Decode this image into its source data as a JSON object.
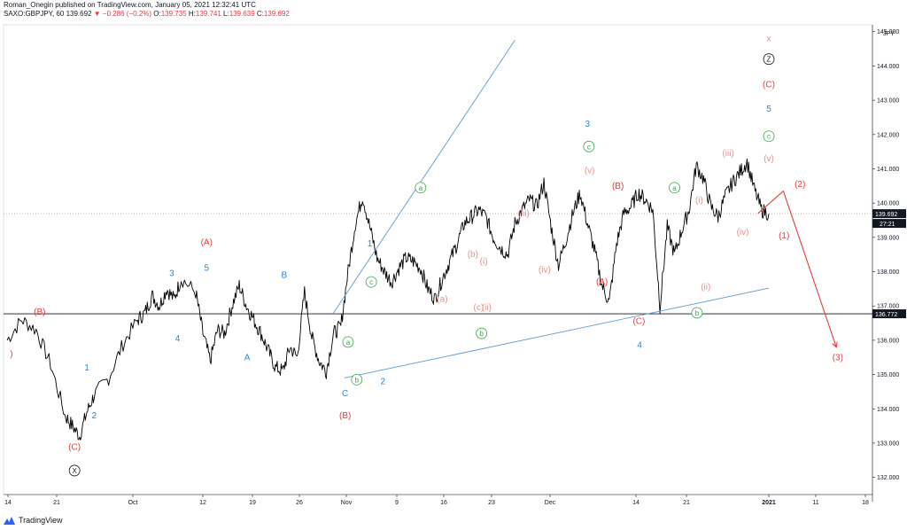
{
  "header": {
    "line1": "Roman_Onegin published on TradingView.com, January 05, 2021 12:32:41 UTC",
    "symbol": "SAXO:GBPJPY, 60",
    "last": "139.692",
    "change": "−0.286 (−0.2%)",
    "o_label": "O:",
    "o": "139.735",
    "h_label": "H:",
    "h": "139.741",
    "l_label": "L:",
    "l": "139.639",
    "c_label": "C:",
    "c": "139.692"
  },
  "watermark": "TradingView",
  "colors": {
    "candle": "#000000",
    "red": "#e83b3b",
    "blue": "#2f86d6",
    "green": "#3aa64a",
    "pink": "#e8918a",
    "trendline": "#5b9bd5",
    "hline": "#131722"
  },
  "chart_data": {
    "type": "line",
    "title": "",
    "currency_label": "JPY",
    "ylim": [
      131.5,
      145.2
    ],
    "y_ticks": [
      "145.000",
      "144.000",
      "143.000",
      "142.000",
      "141.000",
      "140.000",
      "139.000",
      "138.000",
      "137.000",
      "136.000",
      "135.000",
      "134.000",
      "133.000",
      "132.000"
    ],
    "x_ticks": [
      "14",
      "21",
      "Oct",
      "12",
      "19",
      "26",
      "Nov",
      "9",
      "16",
      "23",
      "Dec",
      "14",
      "21",
      "2021",
      "11",
      "18"
    ],
    "last_price_label": "139.692",
    "countdown_label": "27:21",
    "hline_label": "136.772",
    "hline_value": 136.772,
    "path": [
      [
        0,
        136.0
      ],
      [
        2,
        136.6
      ],
      [
        4,
        136.3
      ],
      [
        6,
        135.3
      ],
      [
        8,
        133.8
      ],
      [
        9,
        133.5
      ],
      [
        10,
        133.2
      ],
      [
        11,
        133.9
      ],
      [
        12,
        134.4
      ],
      [
        14,
        134.9
      ],
      [
        16,
        135.9
      ],
      [
        18,
        136.6
      ],
      [
        19,
        136.8
      ],
      [
        20,
        137.3
      ],
      [
        21,
        137.0
      ],
      [
        22,
        137.5
      ],
      [
        23,
        137.2
      ],
      [
        24,
        137.8
      ],
      [
        26,
        137.4
      ],
      [
        27,
        136.2
      ],
      [
        28,
        135.4
      ],
      [
        29,
        136.3
      ],
      [
        30,
        136.2
      ],
      [
        31,
        137.0
      ],
      [
        32,
        137.6
      ],
      [
        33,
        137.0
      ],
      [
        34,
        136.6
      ],
      [
        35,
        136.2
      ],
      [
        36,
        135.7
      ],
      [
        37,
        135.2
      ],
      [
        38,
        135.1
      ],
      [
        39,
        135.8
      ],
      [
        40,
        135.5
      ],
      [
        41,
        137.4
      ],
      [
        42,
        136.1
      ],
      [
        43,
        135.4
      ],
      [
        44,
        135.1
      ],
      [
        45,
        136.2
      ],
      [
        46,
        136.4
      ],
      [
        47,
        138.0
      ],
      [
        48,
        139.4
      ],
      [
        49,
        140.2
      ],
      [
        50,
        139.3
      ],
      [
        51,
        138.4
      ],
      [
        52,
        138.0
      ],
      [
        53,
        137.7
      ],
      [
        54,
        138.1
      ],
      [
        55,
        138.4
      ],
      [
        56,
        138.3
      ],
      [
        57,
        138.1
      ],
      [
        58,
        137.5
      ],
      [
        59,
        137.2
      ],
      [
        60,
        137.8
      ],
      [
        61,
        138.3
      ],
      [
        62,
        138.8
      ],
      [
        63,
        139.4
      ],
      [
        64,
        139.6
      ],
      [
        65,
        139.8
      ],
      [
        66,
        139.6
      ],
      [
        67,
        139.0
      ],
      [
        68,
        138.7
      ],
      [
        69,
        138.5
      ],
      [
        70,
        139.4
      ],
      [
        71,
        139.8
      ],
      [
        72,
        140.1
      ],
      [
        73,
        139.9
      ],
      [
        74,
        140.6
      ],
      [
        75,
        139.3
      ],
      [
        76,
        138.2
      ],
      [
        77,
        138.9
      ],
      [
        78,
        139.7
      ],
      [
        79,
        140.3
      ],
      [
        80,
        139.4
      ],
      [
        81,
        138.6
      ],
      [
        82,
        137.6
      ],
      [
        83,
        137.1
      ],
      [
        84,
        138.8
      ],
      [
        85,
        139.7
      ],
      [
        86,
        139.9
      ],
      [
        87,
        140.3
      ],
      [
        88,
        140.1
      ],
      [
        89,
        139.8
      ],
      [
        90,
        137.0
      ],
      [
        91,
        139.3
      ],
      [
        92,
        138.5
      ],
      [
        93,
        139.2
      ],
      [
        94,
        139.8
      ],
      [
        95,
        141.1
      ],
      [
        96,
        140.7
      ],
      [
        97,
        139.9
      ],
      [
        98,
        139.6
      ],
      [
        99,
        140.2
      ],
      [
        100,
        140.6
      ],
      [
        101,
        140.9
      ],
      [
        102,
        141.2
      ],
      [
        103,
        140.4
      ],
      [
        104,
        139.8
      ],
      [
        105,
        139.69
      ]
    ],
    "path_x_range": [
      0,
      105
    ],
    "trendlines": [
      {
        "x1": 45.0,
        "y1": 136.8,
        "x2": 70.0,
        "y2": 144.75
      },
      {
        "x1": 46.5,
        "y1": 134.9,
        "x2": 105.0,
        "y2": 137.52
      }
    ],
    "projection": [
      [
        103.5,
        139.7
      ],
      [
        107.0,
        140.35
      ],
      [
        114.3,
        135.8
      ]
    ],
    "labels": [
      {
        "t": "(B)",
        "x": 4.5,
        "y": 136.82,
        "c": "red"
      },
      {
        "t": ")",
        "x": 0.6,
        "y": 135.6,
        "c": "red"
      },
      {
        "t": "(C)",
        "x": 9.3,
        "y": 132.88,
        "c": "red"
      },
      {
        "t": "X",
        "x": 9.3,
        "y": 132.2,
        "c": "black",
        "circle": true
      },
      {
        "t": "1",
        "x": 11.0,
        "y": 135.2,
        "c": "blue"
      },
      {
        "t": "2",
        "x": 12.0,
        "y": 133.8,
        "c": "blue"
      },
      {
        "t": "3",
        "x": 22.7,
        "y": 137.95,
        "c": "blue"
      },
      {
        "t": "4",
        "x": 23.5,
        "y": 136.05,
        "c": "blue"
      },
      {
        "t": "5",
        "x": 27.5,
        "y": 138.1,
        "c": "blue"
      },
      {
        "t": "(A)",
        "x": 27.5,
        "y": 138.85,
        "c": "red"
      },
      {
        "t": "A",
        "x": 33.1,
        "y": 135.5,
        "c": "blue"
      },
      {
        "t": "B",
        "x": 38.2,
        "y": 137.9,
        "c": "blue"
      },
      {
        "t": "a",
        "x": 47.0,
        "y": 135.95,
        "c": "green",
        "circle": true
      },
      {
        "t": "b",
        "x": 48.2,
        "y": 134.85,
        "c": "green",
        "circle": true
      },
      {
        "t": "c",
        "x": 50.2,
        "y": 137.7,
        "c": "green",
        "circle": true
      },
      {
        "t": "C",
        "x": 46.6,
        "y": 134.45,
        "c": "blue"
      },
      {
        "t": "(B)",
        "x": 46.6,
        "y": 133.8,
        "c": "red"
      },
      {
        "t": "2",
        "x": 51.8,
        "y": 134.8,
        "c": "blue"
      },
      {
        "t": "1",
        "x": 50.0,
        "y": 138.82,
        "c": "blue"
      },
      {
        "t": "a",
        "x": 57.0,
        "y": 140.45,
        "c": "green",
        "circle": true
      },
      {
        "t": "(a)",
        "x": 60.0,
        "y": 137.2,
        "c": "pink"
      },
      {
        "t": "(b)",
        "x": 64.2,
        "y": 138.5,
        "c": "pink"
      },
      {
        "t": "(i)",
        "x": 65.7,
        "y": 138.3,
        "c": "pink"
      },
      {
        "t": "(c)",
        "x": 65.0,
        "y": 136.95,
        "c": "pink"
      },
      {
        "t": "(ii)",
        "x": 66.1,
        "y": 136.95,
        "c": "pink"
      },
      {
        "t": "b",
        "x": 65.4,
        "y": 136.2,
        "c": "green",
        "circle": true
      },
      {
        "t": "(iii)",
        "x": 71.2,
        "y": 139.7,
        "c": "pink"
      },
      {
        "t": "(iv)",
        "x": 74.1,
        "y": 138.05,
        "c": "pink"
      },
      {
        "t": "3",
        "x": 80.0,
        "y": 142.3,
        "c": "blue"
      },
      {
        "t": "c",
        "x": 80.2,
        "y": 141.65,
        "c": "green",
        "circle": true
      },
      {
        "t": "(v)",
        "x": 80.3,
        "y": 140.95,
        "c": "pink"
      },
      {
        "t": "(B)",
        "x": 84.2,
        "y": 140.5,
        "c": "red"
      },
      {
        "t": "(A)",
        "x": 82.0,
        "y": 137.7,
        "c": "red"
      },
      {
        "t": "(C)",
        "x": 87.1,
        "y": 136.55,
        "c": "red"
      },
      {
        "t": "4",
        "x": 87.2,
        "y": 135.85,
        "c": "blue"
      },
      {
        "t": "a",
        "x": 92.0,
        "y": 140.45,
        "c": "green",
        "circle": true
      },
      {
        "t": "(i)",
        "x": 95.4,
        "y": 140.08,
        "c": "pink"
      },
      {
        "t": "(ii)",
        "x": 96.3,
        "y": 137.55,
        "c": "pink"
      },
      {
        "t": "b",
        "x": 95.1,
        "y": 136.8,
        "c": "green",
        "circle": true
      },
      {
        "t": "(iii)",
        "x": 99.4,
        "y": 141.45,
        "c": "pink"
      },
      {
        "t": "(iv)",
        "x": 101.4,
        "y": 139.15,
        "c": "pink"
      },
      {
        "t": "(v)",
        "x": 105.0,
        "y": 141.3,
        "c": "pink"
      },
      {
        "t": "c",
        "x": 105.0,
        "y": 141.95,
        "c": "green",
        "circle": true
      },
      {
        "t": "5",
        "x": 105.0,
        "y": 142.75,
        "c": "blue"
      },
      {
        "t": "(C)",
        "x": 105.0,
        "y": 143.45,
        "c": "red"
      },
      {
        "t": "Z",
        "x": 105.0,
        "y": 144.2,
        "c": "black",
        "circle": true
      },
      {
        "t": "x",
        "x": 105.0,
        "y": 144.8,
        "c": "pink"
      },
      {
        "t": "(1)",
        "x": 107.1,
        "y": 139.05,
        "c": "red"
      },
      {
        "t": "(2)",
        "x": 109.3,
        "y": 140.55,
        "c": "red"
      },
      {
        "t": "(3)",
        "x": 114.5,
        "y": 135.5,
        "c": "red"
      }
    ]
  }
}
